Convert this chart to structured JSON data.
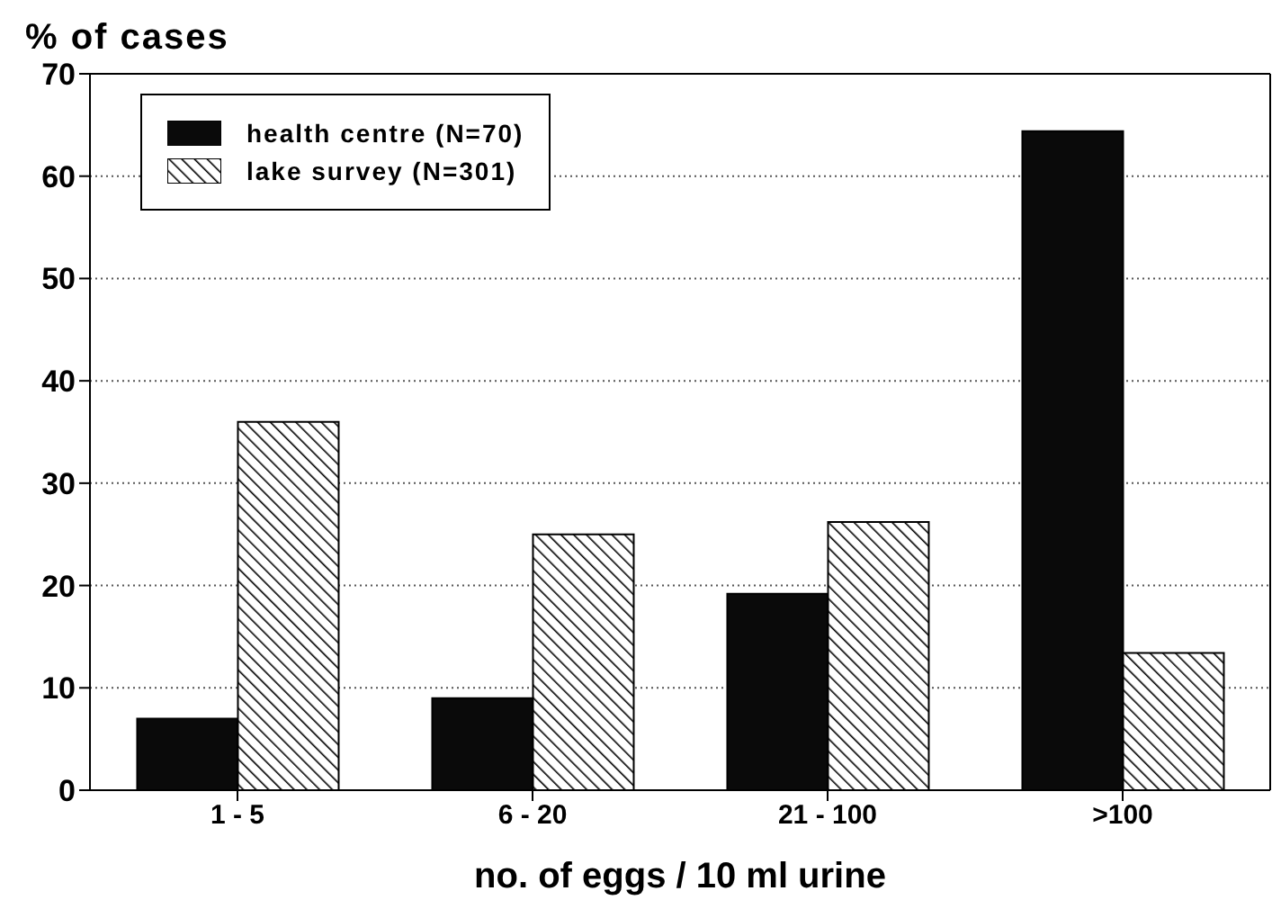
{
  "chart_data": {
    "type": "bar",
    "ylabel": "% of cases",
    "xlabel": "no. of eggs / 10 ml urine",
    "categories": [
      "1 - 5",
      "6 - 20",
      "21 - 100",
      ">100"
    ],
    "series": [
      {
        "name": "health centre (N=70)",
        "color": "#0a0a0a",
        "values": [
          7,
          9,
          19.2,
          64.4
        ]
      },
      {
        "name": "lake survey (N=301)",
        "color": "#000000",
        "values": [
          36,
          25,
          26.2,
          13.4
        ]
      }
    ],
    "ylim": [
      0,
      70
    ],
    "yticks": [
      0,
      10,
      20,
      30,
      40,
      50,
      60,
      70
    ],
    "grid": "y",
    "legend": "top left"
  }
}
